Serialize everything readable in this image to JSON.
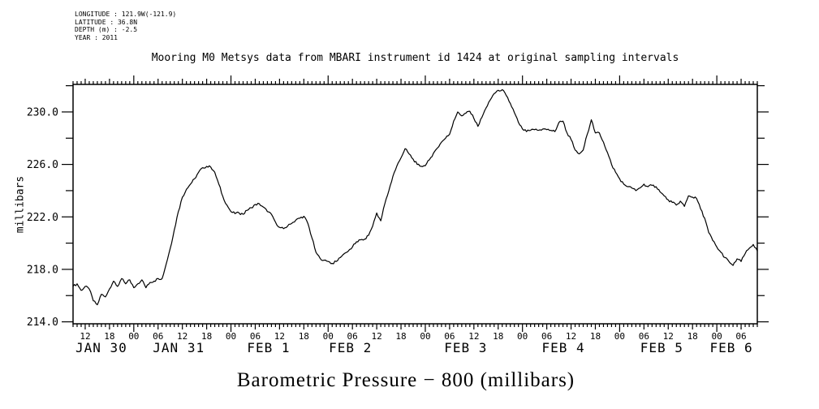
{
  "meta": {
    "lines": [
      "LONGITUDE : 121.9W(-121.9)",
      "LATITUDE : 36.8N",
      "DEPTH (m) : -2.5",
      "YEAR : 2011"
    ]
  },
  "title": "Mooring M0 Metsys data from MBARI instrument id 1424 at original sampling intervals",
  "xlabel": "Barometric Pressure − 800 (millibars)",
  "ylabel": "millibars",
  "chart_data": {
    "type": "line",
    "title": "Mooring M0 Metsys data from MBARI instrument id 1424 at original sampling intervals",
    "xlabel": "Barometric Pressure − 800 (millibars)",
    "ylabel": "millibars",
    "line_color": "#000000",
    "background": "#ffffff",
    "grid": false,
    "legend": false,
    "x_axis": {
      "unit": "hours since JAN 30 09:00 (2011)",
      "range_hours": [
        0,
        169
      ],
      "minor_tick_every_hours": 1,
      "labeled_tick_start": 3,
      "labeled_tick_step": 6,
      "hour_labels": [
        "12",
        "18",
        "00",
        "06",
        "12",
        "18",
        "00",
        "06",
        "12",
        "18",
        "00",
        "06",
        "12",
        "18",
        "00",
        "06",
        "12",
        "18",
        "00",
        "06",
        "12",
        "18",
        "00",
        "06",
        "12",
        "18",
        "00",
        "06"
      ],
      "date_labels": [
        {
          "label": "JAN 30",
          "t": 7.0
        },
        {
          "label": "JAN 31",
          "t": 26.1
        },
        {
          "label": "FEB 1",
          "t": 48.3
        },
        {
          "label": "FEB 2",
          "t": 68.5
        },
        {
          "label": "FEB 3",
          "t": 97.0
        },
        {
          "label": "FEB 4",
          "t": 121.1
        },
        {
          "label": "FEB 5",
          "t": 145.4
        },
        {
          "label": "FEB 6",
          "t": 162.6
        }
      ]
    },
    "y_axis": {
      "label": "millibars",
      "major_ticks": [
        214.0,
        218.0,
        222.0,
        226.0,
        230.0
      ],
      "minor_ticks": [
        216,
        220,
        224,
        228,
        232
      ],
      "range": [
        213.85,
        232.1
      ]
    },
    "series": [
      {
        "name": "barometric_pressure_minus_800_millibars",
        "t_step_hours": 1,
        "t_start_hours": 0,
        "values": [
          216.7,
          216.9,
          216.4,
          216.7,
          216.5,
          215.6,
          215.3,
          216.1,
          215.9,
          216.5,
          217.1,
          216.7,
          217.3,
          216.9,
          217.2,
          216.6,
          216.9,
          217.2,
          216.6,
          217.0,
          217.1,
          217.3,
          217.3,
          218.4,
          219.6,
          221.0,
          222.4,
          223.5,
          224.1,
          224.5,
          224.9,
          225.4,
          225.75,
          225.85,
          225.8,
          225.4,
          224.5,
          223.55,
          222.9,
          222.4,
          222.25,
          222.3,
          222.2,
          222.5,
          222.7,
          222.95,
          223.0,
          222.75,
          222.4,
          222.2,
          221.6,
          221.2,
          221.1,
          221.3,
          221.5,
          221.75,
          221.9,
          222.05,
          221.5,
          220.4,
          219.3,
          218.85,
          218.7,
          218.6,
          218.45,
          218.6,
          218.9,
          219.2,
          219.4,
          219.7,
          220.1,
          220.25,
          220.3,
          220.6,
          221.3,
          222.3,
          221.7,
          223.0,
          224.0,
          225.1,
          225.9,
          226.5,
          227.2,
          226.8,
          226.4,
          226.0,
          225.85,
          225.9,
          226.35,
          226.85,
          227.25,
          227.7,
          228.0,
          228.3,
          229.3,
          230.0,
          229.7,
          229.9,
          230.05,
          229.5,
          228.9,
          229.6,
          230.3,
          230.9,
          231.4,
          231.65,
          231.7,
          231.25,
          230.65,
          229.95,
          229.2,
          228.7,
          228.5,
          228.6,
          228.65,
          228.6,
          228.7,
          228.65,
          228.6,
          228.5,
          229.2,
          229.3,
          228.4,
          227.9,
          227.1,
          226.8,
          227.1,
          228.3,
          229.4,
          228.4,
          228.4,
          227.7,
          226.9,
          226.0,
          225.4,
          224.9,
          224.5,
          224.3,
          224.2,
          224.0,
          224.2,
          224.5,
          224.3,
          224.4,
          224.3,
          223.9,
          223.6,
          223.3,
          223.1,
          222.9,
          223.2,
          222.8,
          223.6,
          223.5,
          223.4,
          222.6,
          221.9,
          220.8,
          220.2,
          219.7,
          219.3,
          218.9,
          218.6,
          218.3,
          218.8,
          218.6,
          219.2,
          219.6,
          219.9,
          219.4
        ]
      }
    ]
  }
}
